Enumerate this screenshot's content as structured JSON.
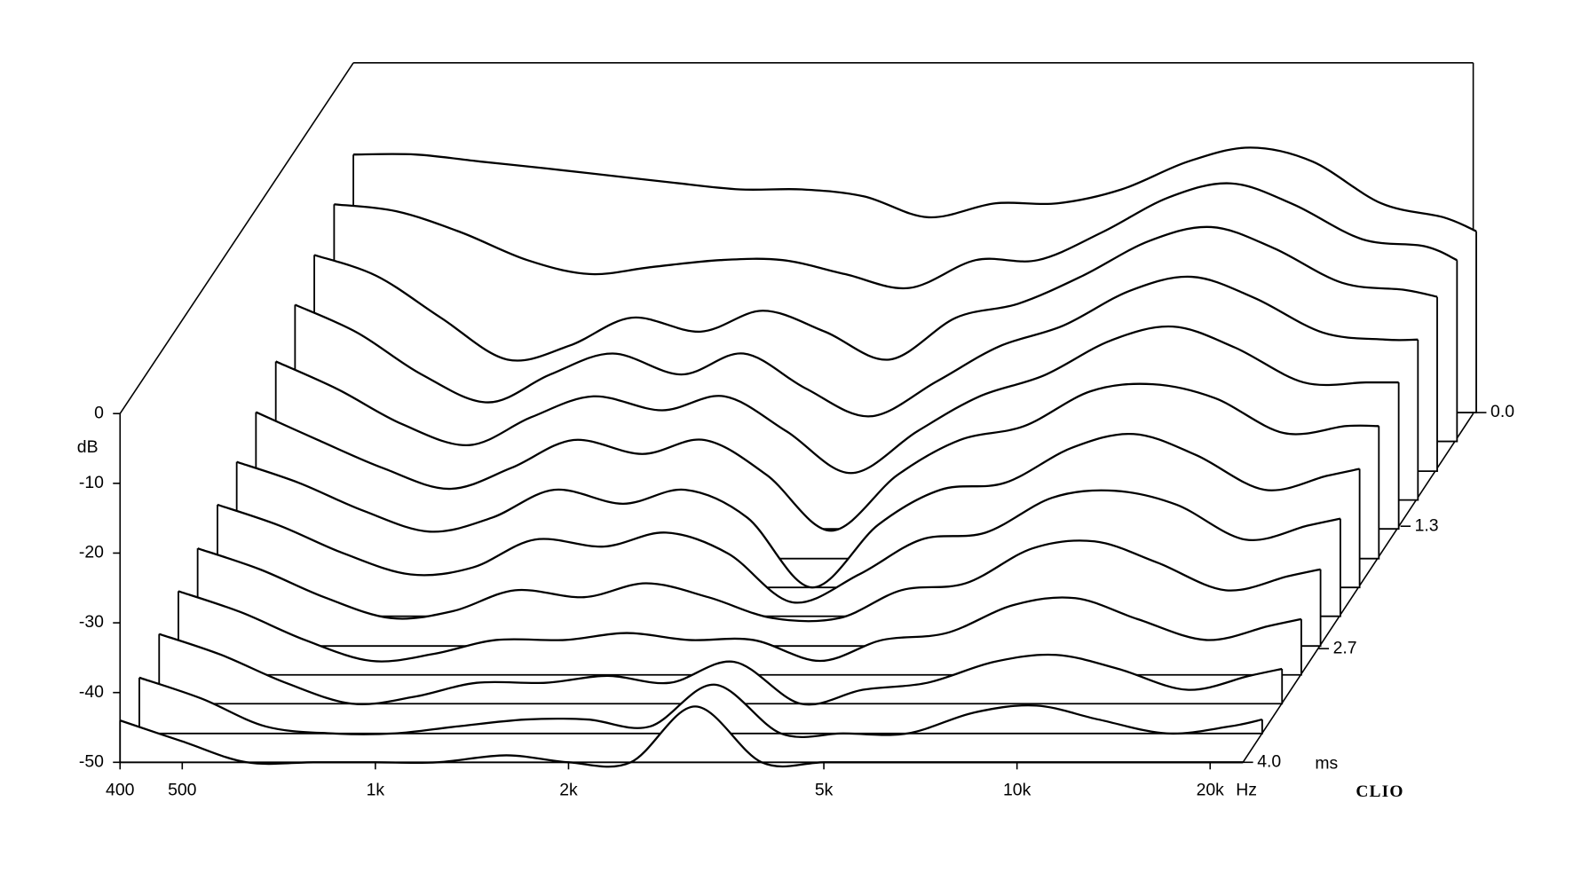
{
  "chart_data": {
    "type": "waterfall",
    "y_label": "dB",
    "x_unit": "Hz",
    "z_unit": "ms",
    "watermark": "CLIO",
    "xscale": "log",
    "x": [
      400,
      500,
      630,
      800,
      1000,
      1250,
      1600,
      2000,
      2500,
      3150,
      4000,
      5000,
      6300,
      8000,
      10000,
      12500,
      16000,
      20000,
      22500
    ],
    "xlim": [
      400,
      22500
    ],
    "xticks": [
      400,
      500,
      {
        "value": 1000,
        "label": "1k"
      },
      {
        "value": 2000,
        "label": "2k"
      },
      {
        "value": 5000,
        "label": "5k"
      },
      {
        "value": 10000,
        "label": "10k"
      },
      {
        "value": 20000,
        "label": "20k"
      }
    ],
    "ylim": [
      -50,
      0
    ],
    "yticks": [
      0,
      -10,
      -20,
      -30,
      -40,
      -50
    ],
    "zlim": [
      0,
      4
    ],
    "zticks": [
      {
        "value": 0,
        "label": "0.0"
      },
      1.3,
      2.7,
      {
        "value": 4,
        "label": "4.0"
      }
    ],
    "color": "#000000",
    "series": [
      {
        "time": 0,
        "values": [
          -13,
          -13,
          -14,
          -15,
          -16,
          -17,
          -18,
          -18,
          -19,
          -22,
          -20,
          -20,
          -18,
          -14,
          -12,
          -14,
          -20,
          -22,
          -24
        ]
      },
      {
        "time": 0.33,
        "values": [
          -16,
          -17,
          -20,
          -24,
          -26,
          -25,
          -24,
          -24,
          -26,
          -28,
          -24,
          -24,
          -20,
          -15,
          -13,
          -16,
          -21,
          -22,
          -24
        ]
      },
      {
        "time": 0.67,
        "values": [
          -19,
          -22,
          -28,
          -34,
          -32,
          -28,
          -30,
          -27,
          -30,
          -34,
          -28,
          -26,
          -22,
          -17,
          -15,
          -18,
          -23,
          -24,
          -25
        ]
      },
      {
        "time": 1.0,
        "values": [
          -22,
          -26,
          -32,
          -36,
          -32,
          -29,
          -32,
          -29,
          -34,
          -38,
          -33,
          -28,
          -25,
          -20,
          -18,
          -21,
          -26,
          -27,
          -27
        ]
      },
      {
        "time": 1.33,
        "values": [
          -26,
          -30,
          -35,
          -38,
          -34,
          -31,
          -33,
          -31,
          -36,
          -42,
          -36,
          -31,
          -28,
          -23,
          -21,
          -24,
          -29,
          -29,
          -29
        ]
      },
      {
        "time": 1.67,
        "values": [
          -29,
          -33,
          -37,
          -40,
          -37,
          -33,
          -35,
          -33,
          -38,
          -46,
          -38,
          -33,
          -31,
          -26,
          -25,
          -27,
          -32,
          -31,
          -31
        ]
      },
      {
        "time": 2.0,
        "values": [
          -32,
          -35,
          -39,
          -42,
          -40,
          -36,
          -38,
          -36,
          -40,
          -50,
          -41,
          -36,
          -35,
          -30,
          -28,
          -31,
          -36,
          -34,
          -33
        ]
      },
      {
        "time": 2.33,
        "values": [
          -34,
          -37,
          -41,
          -44,
          -43,
          -39,
          -40,
          -38,
          -41,
          -48,
          -44,
          -39,
          -38,
          -33,
          -32,
          -34,
          -39,
          -37,
          -36
        ]
      },
      {
        "time": 2.67,
        "values": [
          -36,
          -39,
          -43,
          -46,
          -45,
          -42,
          -43,
          -41,
          -43,
          -46,
          -46,
          -42,
          -41,
          -36,
          -35,
          -38,
          -42,
          -40,
          -39
        ]
      },
      {
        "time": 3.0,
        "values": [
          -38,
          -41,
          -45,
          -48,
          -47,
          -45,
          -45,
          -44,
          -45,
          -45,
          -48,
          -45,
          -44,
          -40,
          -39,
          -42,
          -45,
          -43,
          -42
        ]
      },
      {
        "time": 3.33,
        "values": [
          -40,
          -43,
          -47,
          -50,
          -49,
          -47,
          -47,
          -46,
          -47,
          -44,
          -50,
          -48,
          -47,
          -44,
          -43,
          -45,
          -48,
          -46,
          -45
        ]
      },
      {
        "time": 3.67,
        "values": [
          -42,
          -45,
          -49,
          -50,
          -50,
          -49,
          -48,
          -48,
          -49,
          -43,
          -50,
          -50,
          -50,
          -47,
          -46,
          -48,
          -50,
          -49,
          -48
        ]
      },
      {
        "time": 4.0,
        "values": [
          -44,
          -47,
          -50,
          -50,
          -50,
          -50,
          -49,
          -50,
          -50,
          -42,
          -50,
          -50,
          -50,
          -50,
          -50,
          -50,
          -50,
          -50,
          -50
        ]
      }
    ]
  }
}
